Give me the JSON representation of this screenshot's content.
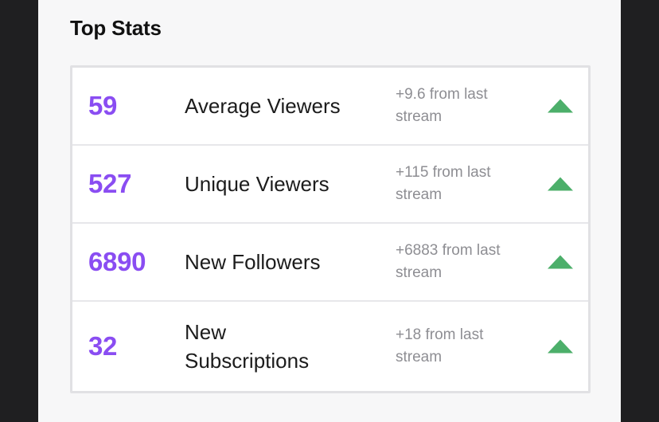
{
  "section": {
    "title": "Top Stats"
  },
  "stats": [
    {
      "value": "59",
      "label": "Average Viewers",
      "change": "+9.6 from last stream",
      "trend_icon": "arrow-up-icon"
    },
    {
      "value": "527",
      "label": "Unique Viewers",
      "change": "+115 from last stream",
      "trend_icon": "arrow-up-icon"
    },
    {
      "value": "6890",
      "label": "New Followers",
      "change": "+6883 from last stream",
      "trend_icon": "arrow-up-icon"
    },
    {
      "value": "32",
      "label": "New Subscriptions",
      "change": "+18 from last stream",
      "trend_icon": "arrow-up-icon"
    }
  ],
  "colors": {
    "value": "#8a4df2",
    "trend_up": "#4caf6a",
    "change_text": "#8e8e93"
  }
}
